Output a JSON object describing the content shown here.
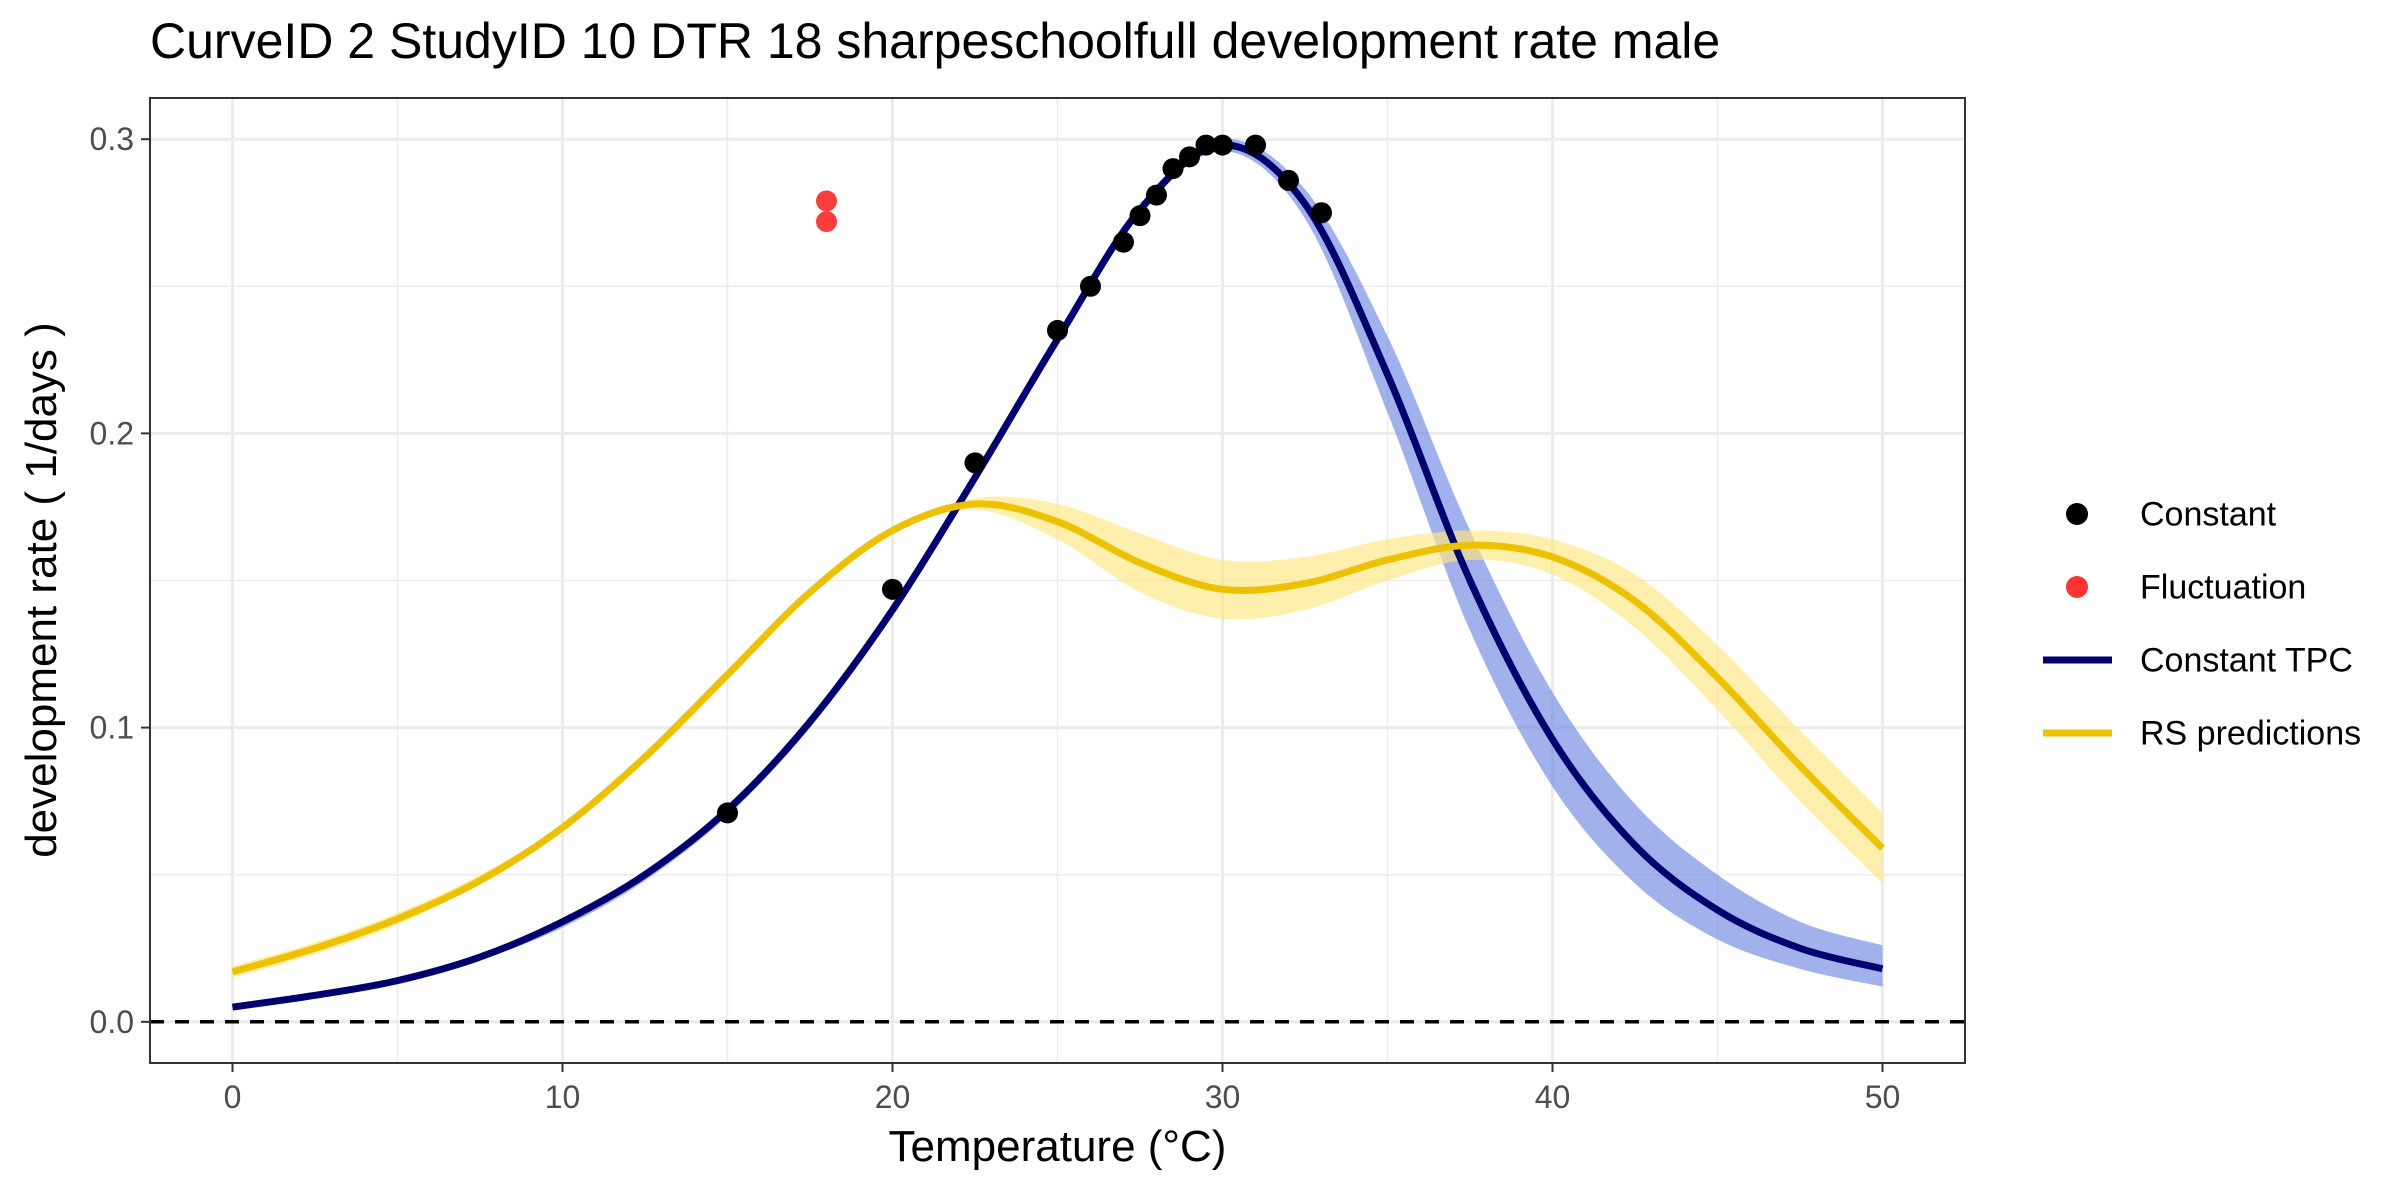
{
  "chart_data": {
    "type": "line",
    "title": "CurveID 2 StudyID 10 DTR 18 sharpeschoolfull development rate male",
    "xlabel": "Temperature (°C)",
    "ylabel": "development rate ( 1/days )",
    "xlim": [
      -2.5,
      52.5
    ],
    "ylim": [
      -0.014,
      0.314
    ],
    "x_ticks": [
      0,
      10,
      20,
      30,
      40,
      50
    ],
    "x_tick_labels": [
      "0",
      "10",
      "20",
      "30",
      "40",
      "50"
    ],
    "y_ticks": [
      0.0,
      0.1,
      0.2,
      0.3
    ],
    "y_tick_labels": [
      "0.0",
      "0.1",
      "0.2",
      "0.3"
    ],
    "grid": true,
    "reference_line": {
      "y": 0.0,
      "style": "dashed",
      "color": "#000000"
    },
    "legend_position": "right",
    "series": [
      {
        "name": "Constant",
        "kind": "points",
        "color": "#000000",
        "x": [
          15,
          20,
          22.5,
          25,
          26,
          27,
          27.5,
          28,
          28.5,
          29,
          29.5,
          30,
          31,
          32,
          33
        ],
        "y": [
          0.071,
          0.147,
          0.19,
          0.235,
          0.25,
          0.265,
          0.274,
          0.281,
          0.29,
          0.294,
          0.298,
          0.298,
          0.298,
          0.286,
          0.275
        ]
      },
      {
        "name": "Fluctuation",
        "kind": "points",
        "color": "#ff3333",
        "x": [
          18,
          18
        ],
        "y": [
          0.279,
          0.272
        ]
      },
      {
        "name": "Constant TPC",
        "kind": "line",
        "color": "#00006e",
        "band_color": "#6f87e0",
        "x": [
          0,
          2.5,
          5,
          7.5,
          10,
          12.5,
          15,
          17.5,
          20,
          22.5,
          25,
          27.5,
          30,
          32.5,
          35,
          37.5,
          40,
          42.5,
          45,
          47.5,
          50
        ],
        "y": [
          0.005,
          0.009,
          0.014,
          0.022,
          0.034,
          0.05,
          0.072,
          0.102,
          0.14,
          0.185,
          0.232,
          0.276,
          0.298,
          0.278,
          0.22,
          0.15,
          0.096,
          0.06,
          0.038,
          0.025,
          0.018
        ],
        "lower": [
          0.004,
          0.008,
          0.013,
          0.021,
          0.032,
          0.048,
          0.07,
          0.1,
          0.138,
          0.183,
          0.23,
          0.274,
          0.296,
          0.273,
          0.207,
          0.133,
          0.08,
          0.047,
          0.028,
          0.018,
          0.012
        ],
        "upper": [
          0.006,
          0.01,
          0.015,
          0.023,
          0.035,
          0.051,
          0.073,
          0.103,
          0.142,
          0.187,
          0.234,
          0.278,
          0.3,
          0.283,
          0.233,
          0.167,
          0.112,
          0.074,
          0.05,
          0.034,
          0.026
        ]
      },
      {
        "name": "RS predictions",
        "kind": "line",
        "color": "#eec100",
        "band_color": "#ffe680",
        "x": [
          0,
          2.5,
          5,
          7.5,
          10,
          12.5,
          15,
          17.5,
          20,
          22.5,
          25,
          27.5,
          30,
          32.5,
          35,
          37.5,
          40,
          42.5,
          45,
          47.5,
          50
        ],
        "y": [
          0.017,
          0.025,
          0.035,
          0.048,
          0.066,
          0.09,
          0.118,
          0.146,
          0.167,
          0.176,
          0.17,
          0.156,
          0.147,
          0.149,
          0.157,
          0.162,
          0.158,
          0.143,
          0.117,
          0.087,
          0.059
        ],
        "lower": [
          0.015,
          0.023,
          0.033,
          0.047,
          0.065,
          0.089,
          0.117,
          0.145,
          0.166,
          0.174,
          0.164,
          0.146,
          0.137,
          0.14,
          0.15,
          0.157,
          0.152,
          0.134,
          0.106,
          0.075,
          0.047
        ],
        "upper": [
          0.019,
          0.027,
          0.037,
          0.05,
          0.067,
          0.091,
          0.119,
          0.147,
          0.168,
          0.178,
          0.176,
          0.166,
          0.157,
          0.158,
          0.164,
          0.167,
          0.164,
          0.152,
          0.128,
          0.099,
          0.071
        ]
      }
    ]
  }
}
